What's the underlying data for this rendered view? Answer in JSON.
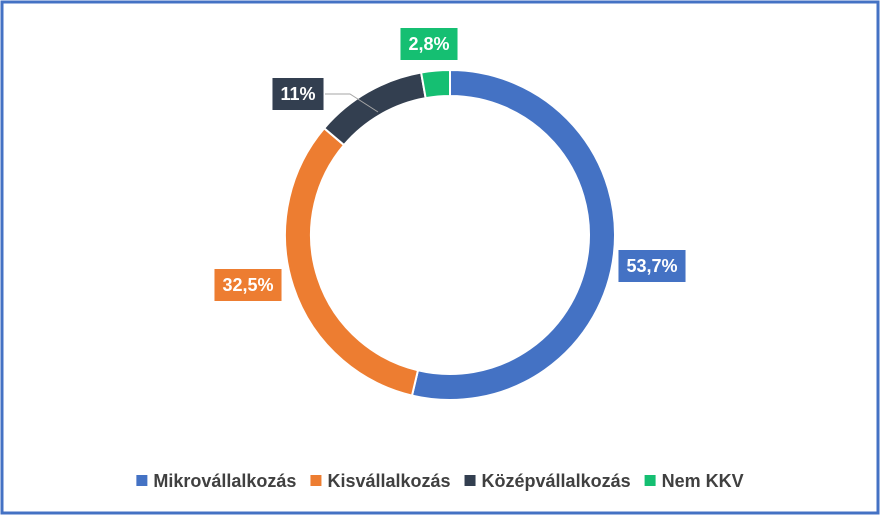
{
  "chart_data": {
    "type": "donut",
    "categories": [
      "Mikrovállalkozás",
      "Kisvállalkozás",
      "Középvállalkozás",
      "Nem KKV"
    ],
    "values": [
      53.7,
      32.5,
      11,
      2.8
    ],
    "value_labels": [
      "53,7%",
      "32,5%",
      "11%",
      "2,8%"
    ],
    "colors": [
      "#4472c4",
      "#ed7d31",
      "#333f50",
      "#15bf72"
    ],
    "legend": "bottom"
  }
}
